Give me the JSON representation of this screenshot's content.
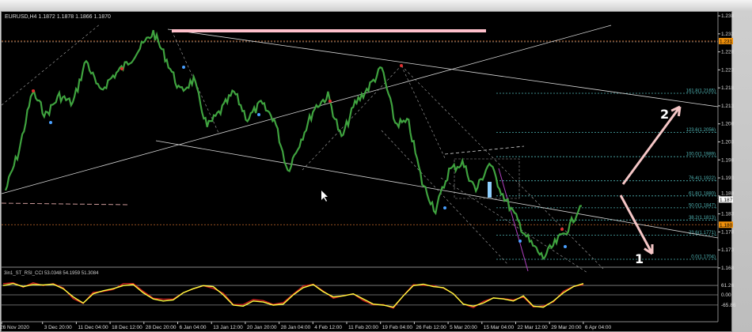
{
  "header": {
    "symbol_line": "EURUSD,H4  1.1872 1.1878 1.1866 1.1870"
  },
  "indicator": {
    "label": "3in1_ST_RSI_CCI 53.0348 54.1959 51.3084",
    "axis_labels": [
      "61.26",
      "0.00",
      "-65.86"
    ]
  },
  "chart_data": {
    "type": "line",
    "symbol": "EURUSD",
    "timeframe": "H4",
    "x_tick_labels": [
      "26 Nov 2020",
      "3 Dec 20:00",
      "11 Dec 04:00",
      "18 Dec 12:00",
      "28 Dec 20:00",
      "6 Jan 04:00",
      "13 Jan 12:00",
      "20 Jan 20:00",
      "28 Jan 04:00",
      "4 Feb 12:00",
      "11 Feb 20:00",
      "19 Feb 04:00",
      "26 Feb 12:00",
      "5 Mar 20:00",
      "15 Mar 04:00",
      "22 Mar 12:00",
      "29 Mar 20:00",
      "6 Apr 04:00"
    ],
    "y_tick_labels": [
      "1.238",
      "1.233",
      "1.228",
      "1.223",
      "1.218",
      "1.213",
      "1.208",
      "1.203",
      "1.198",
      "1.193",
      "1.188",
      "1.183",
      "1.178",
      "1.173",
      "1.168"
    ],
    "price_markers": [
      {
        "label": "1.231",
        "price": 1.231,
        "color": "#f0900a"
      },
      {
        "label": "1.187",
        "price": 1.187,
        "color": "#ffffff"
      },
      {
        "label": "1.180",
        "price": 1.18,
        "color": "#f0900a"
      }
    ],
    "close_path": [
      1.1895,
      1.2005,
      1.2169,
      1.2104,
      1.2158,
      1.2136,
      1.2257,
      1.2169,
      1.2213,
      1.2246,
      1.229,
      1.2334,
      1.2257,
      1.2169,
      1.2202,
      1.2071,
      1.2115,
      1.2169,
      1.2093,
      1.2136,
      1.2093,
      1.195,
      1.2038,
      1.2125,
      1.2158,
      1.2038,
      1.2136,
      1.218,
      1.2235,
      1.2082,
      1.2082,
      1.1917,
      1.184,
      1.195,
      1.1972,
      1.1895,
      1.1972,
      1.1884,
      1.1818,
      1.1752,
      1.1708,
      1.1752,
      1.1796,
      1.1873
    ],
    "fibonacci": [
      {
        "label": "161.8(1.2165)",
        "price": 1.2165
      },
      {
        "label": "123.6(1.2056)",
        "price": 1.2056
      },
      {
        "label": "100.0(1.1989)",
        "price": 1.1989
      },
      {
        "label": "76.4(1.1922)",
        "price": 1.1922
      },
      {
        "label": "61.8(1.1880)",
        "price": 1.188
      },
      {
        "label": "50.0(1.1847)",
        "price": 1.1847
      },
      {
        "label": "38.2(1.1813)",
        "price": 1.1813
      },
      {
        "label": "23.6(1.1771)",
        "price": 1.1771
      },
      {
        "label": "0.0(1.1704)",
        "price": 1.1704
      }
    ],
    "annotations": [
      {
        "label": "2",
        "direction": "up"
      },
      {
        "label": "1",
        "direction": "down"
      }
    ],
    "oscillator": [
      45,
      55,
      40,
      50,
      48,
      52,
      30,
      -10,
      -40,
      5,
      20,
      30,
      45,
      50,
      10,
      -20,
      -30,
      -25,
      10,
      30,
      45,
      40,
      0,
      -50,
      -55,
      -30,
      -35,
      -50,
      -45,
      0,
      35,
      50,
      15,
      -10,
      -5,
      5,
      -20,
      -45,
      -50,
      -60,
      -5,
      45,
      52,
      40,
      35,
      5,
      -45,
      -55,
      -40,
      -15,
      -20,
      -30,
      -5,
      -55,
      -60,
      -30,
      10,
      40,
      55
    ],
    "colors": {
      "candles": "#3fa33f",
      "signal": "#ffff40",
      "oscillator": "#d02020",
      "trendline": "#d8d8d8",
      "fib": "#4fb3b3",
      "arrows": "#f5c6c6",
      "highlight": "#ffc0cb"
    }
  }
}
